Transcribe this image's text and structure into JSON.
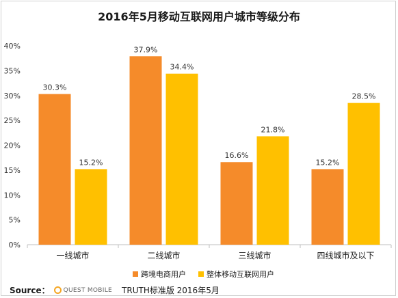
{
  "title": "2016年5月移动互联网用户城市等级分布",
  "source": {
    "label": "Source：",
    "logo_text": "QUEST MOBILE",
    "text": "TRUTH标准版 2016年5月"
  },
  "chart_data": {
    "type": "bar",
    "title": "2016年5月移动互联网用户城市等级分布",
    "categories": [
      "一线城市",
      "二线城市",
      "三线城市",
      "四线城市及以下"
    ],
    "series": [
      {
        "name": "跨境电商用户",
        "values": [
          30.3,
          37.9,
          16.6,
          15.2
        ],
        "color": "#f58b2a"
      },
      {
        "name": "整体移动互联网用户",
        "values": [
          15.2,
          34.4,
          21.8,
          28.5
        ],
        "color": "#ffc000"
      }
    ],
    "value_labels": [
      [
        "30.3%",
        "37.9%",
        "16.6%",
        "15.2%"
      ],
      [
        "15.2%",
        "34.4%",
        "21.8%",
        "28.5%"
      ]
    ],
    "ylim": [
      0,
      40
    ],
    "yticks": [
      0,
      5,
      10,
      15,
      20,
      25,
      30,
      35,
      40
    ],
    "ytick_labels": [
      "0%",
      "5%",
      "10%",
      "15%",
      "20%",
      "25%",
      "30%",
      "35%",
      "40%"
    ],
    "grid": false,
    "legend_position": "bottom"
  }
}
